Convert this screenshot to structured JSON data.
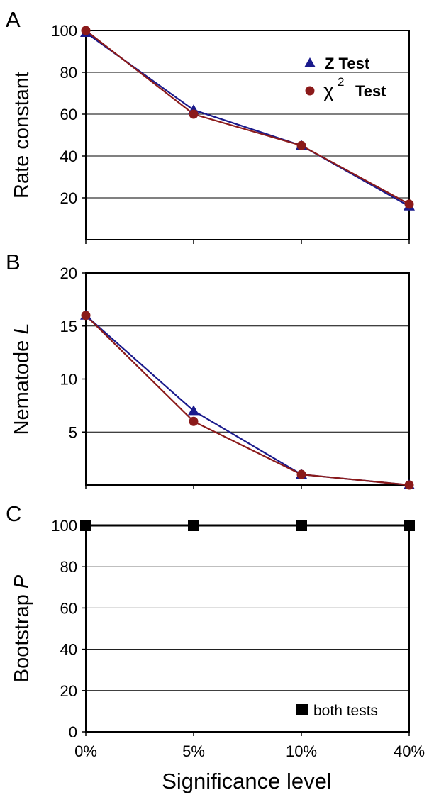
{
  "colors": {
    "z_test": "#1a1a8c",
    "chi2_test": "#8b1a1a",
    "both": "#000000",
    "axis": "#000000",
    "grid": "#000000"
  },
  "figure": {
    "xlabel": "Significance level"
  },
  "chart_data": [
    {
      "panel": "A",
      "type": "line",
      "categories": [
        "0%",
        "5%",
        "10%",
        "40%"
      ],
      "ylabel": "Rate constant",
      "ylim": [
        0,
        100
      ],
      "yticks": [
        20,
        40,
        60,
        80,
        100
      ],
      "grid": "horizontal",
      "legend_placement": "top-right",
      "series": [
        {
          "name": "Z Test",
          "marker": "triangle",
          "color": "#1a1a8c",
          "values": [
            99,
            62,
            45,
            16
          ]
        },
        {
          "name": "Test",
          "name_symbol": "χ",
          "name_superscript": "2",
          "marker": "circle",
          "color": "#8b1a1a",
          "values": [
            100,
            60,
            45,
            17
          ]
        }
      ]
    },
    {
      "panel": "B",
      "type": "line",
      "categories": [
        "0%",
        "5%",
        "10%",
        "40%"
      ],
      "ylabel_plain": "Nematode ",
      "ylabel_italic": "L",
      "ylim": [
        0,
        20
      ],
      "yticks": [
        5,
        10,
        15,
        20
      ],
      "grid": "horizontal",
      "series": [
        {
          "name": "Z Test",
          "marker": "triangle",
          "color": "#1a1a8c",
          "values": [
            16,
            7,
            1,
            0
          ]
        },
        {
          "name": "χ2 Test",
          "marker": "circle",
          "color": "#8b1a1a",
          "values": [
            16,
            6,
            1,
            0
          ]
        }
      ]
    },
    {
      "panel": "C",
      "type": "line",
      "categories": [
        "0%",
        "5%",
        "10%",
        "40%"
      ],
      "ylabel_plain": "Bootstrap ",
      "ylabel_italic": "P",
      "ylim": [
        0,
        100
      ],
      "yticks": [
        0,
        20,
        40,
        60,
        80,
        100
      ],
      "grid": "horizontal",
      "legend_placement": "bottom-right",
      "series": [
        {
          "name": "both tests",
          "marker": "square",
          "color": "#000000",
          "values": [
            100,
            100,
            100,
            100
          ]
        }
      ]
    }
  ]
}
